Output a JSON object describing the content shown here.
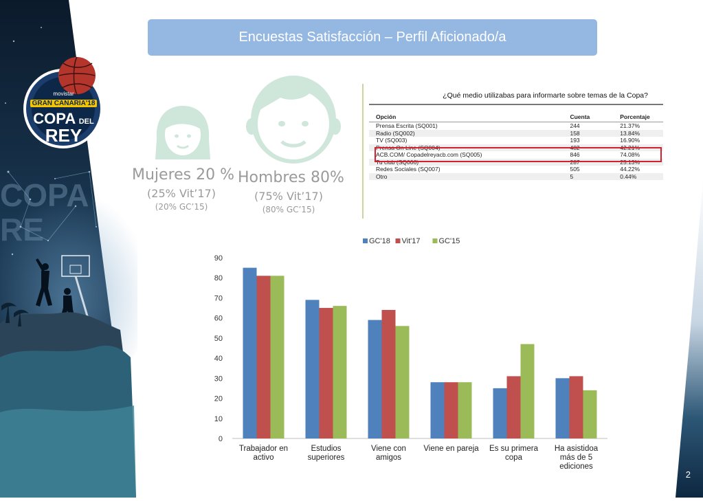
{
  "slide": {
    "title": "Encuestas Satisfacción – Perfil Aficionado/a",
    "page_number": "2"
  },
  "logo": {
    "brand": "movistar",
    "event": "GRAN CANARIA'18",
    "line1": "COPA",
    "line2": "DEL",
    "line3": "REY"
  },
  "demographics": {
    "women": {
      "main": "Mujeres 20 %",
      "sub": "(25% Vit’17)",
      "sub2": "(20% GC’15)"
    },
    "men": {
      "main": "Hombres 80%",
      "sub": "(75% Vit’17)",
      "sub2": "(80% GC’15)"
    }
  },
  "survey": {
    "question": "¿Qué medio utilizabas para informarte sobre temas de la Copa?",
    "headers": [
      "Opción",
      "Cuenta",
      "Porcentaje"
    ],
    "rows": [
      [
        "Prensa Escrita (SQ001)",
        "244",
        "21.37%"
      ],
      [
        "Radio (SQ002)",
        "158",
        "13.84%"
      ],
      [
        "TV (SQ003)",
        "193",
        "16.90%"
      ],
      [
        "Prensa On Line (SQ004)",
        "482",
        "42.21%"
      ],
      [
        "ACB.COM/ Copadelreyacb.com (SQ005)",
        "846",
        "74.08%"
      ],
      [
        "Tu club (SQ006)",
        "287",
        "25.13%"
      ],
      [
        "Redes Sociales (SQ007)",
        "505",
        "44.22%"
      ],
      [
        "Otro",
        "5",
        "0.44%"
      ]
    ],
    "highlight_color": "#d2202f"
  },
  "chart_data": {
    "type": "bar",
    "categories": [
      [
        "Trabajador en",
        "activo"
      ],
      [
        "Estudios",
        "superiores"
      ],
      [
        "Viene con",
        "amigos"
      ],
      [
        "Viene  en pareja"
      ],
      [
        "Es su primera",
        "copa"
      ],
      [
        "Ha asistidoa",
        "más de 5",
        "ediciones"
      ]
    ],
    "series": [
      {
        "name": "GC'18",
        "color": "#4f81bd",
        "values": [
          85,
          69,
          59,
          28,
          25,
          30
        ]
      },
      {
        "name": "Vit'17",
        "color": "#c0504d",
        "values": [
          81,
          65,
          64,
          28,
          31,
          31
        ]
      },
      {
        "name": "GC'15",
        "color": "#9bbb59",
        "values": [
          81,
          66,
          56,
          28,
          47,
          24
        ]
      }
    ],
    "ylim": [
      0,
      90
    ],
    "yticks": [
      0,
      10,
      20,
      30,
      40,
      50,
      60,
      70,
      80,
      90
    ],
    "legend": "top",
    "grid": false
  },
  "colors": {
    "title_bar": "#95b8e3",
    "face": "#cfe6da",
    "divider": "#c8d69a"
  }
}
